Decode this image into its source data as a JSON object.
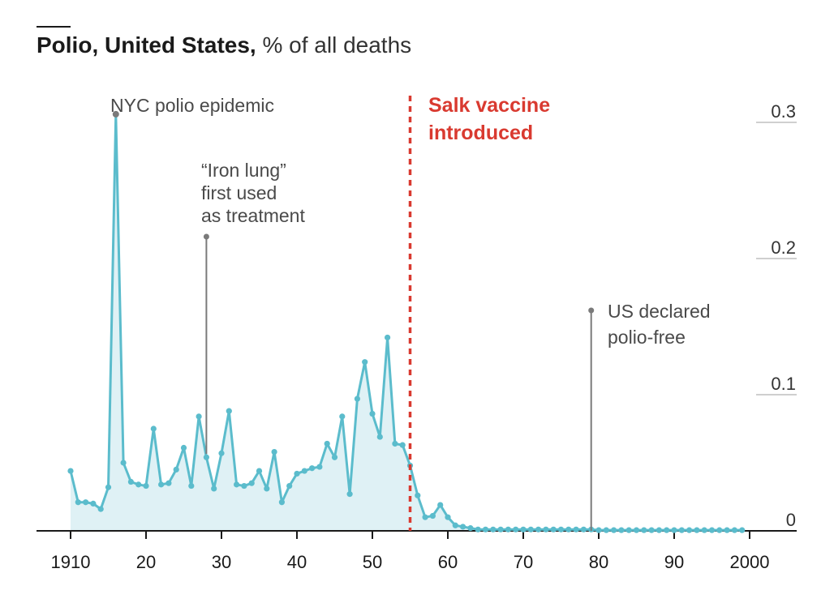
{
  "header": {
    "title": "Polio, United States,",
    "subtitle": "% of all deaths"
  },
  "annotations": {
    "nyc": {
      "lines": [
        "NYC polio epidemic"
      ],
      "x": 1916
    },
    "iron_lung": {
      "lines": [
        "“Iron lung”",
        "first used",
        "as treatment"
      ],
      "x": 1928
    },
    "salk": {
      "lines": [
        "Salk vaccine",
        "introduced"
      ],
      "x": 1955
    },
    "polio_free": {
      "lines": [
        "US declared",
        "polio-free"
      ],
      "x": 1979
    }
  },
  "colors": {
    "line": "#5bbccc",
    "area": "#dff1f5",
    "salk": "#d93a30",
    "annotation": "#7a7a7a",
    "text": "#333333",
    "grid": "#bfbfbf"
  },
  "chart_data": {
    "type": "area",
    "title": "Polio, United States, % of all deaths",
    "xlabel": "",
    "ylabel": "",
    "xlim": [
      1910,
      2000
    ],
    "ylim": [
      0,
      0.3
    ],
    "x_ticks": [
      {
        "value": 1910,
        "label": "1910"
      },
      {
        "value": 1920,
        "label": "20"
      },
      {
        "value": 1930,
        "label": "30"
      },
      {
        "value": 1940,
        "label": "40"
      },
      {
        "value": 1950,
        "label": "50"
      },
      {
        "value": 1960,
        "label": "60"
      },
      {
        "value": 1970,
        "label": "70"
      },
      {
        "value": 1980,
        "label": "80"
      },
      {
        "value": 1990,
        "label": "90"
      },
      {
        "value": 2000,
        "label": "2000"
      }
    ],
    "y_ticks": [
      {
        "value": 0,
        "label": "0"
      },
      {
        "value": 0.1,
        "label": "0.1"
      },
      {
        "value": 0.2,
        "label": "0.2"
      },
      {
        "value": 0.3,
        "label": "0.3"
      }
    ],
    "grid": "horizontal",
    "x": [
      1910,
      1911,
      1912,
      1913,
      1914,
      1915,
      1916,
      1917,
      1918,
      1919,
      1920,
      1921,
      1922,
      1923,
      1924,
      1925,
      1926,
      1927,
      1928,
      1929,
      1930,
      1931,
      1932,
      1933,
      1934,
      1935,
      1936,
      1937,
      1938,
      1939,
      1940,
      1941,
      1942,
      1943,
      1944,
      1945,
      1946,
      1947,
      1948,
      1949,
      1950,
      1951,
      1952,
      1953,
      1954,
      1955,
      1956,
      1957,
      1958,
      1959,
      1960,
      1961,
      1962,
      1963,
      1964,
      1965,
      1966,
      1967,
      1968,
      1969,
      1970,
      1971,
      1972,
      1973,
      1974,
      1975,
      1976,
      1977,
      1978,
      1979,
      1980,
      1981,
      1982,
      1983,
      1984,
      1985,
      1986,
      1987,
      1988,
      1989,
      1990,
      1991,
      1992,
      1993,
      1994,
      1995,
      1996,
      1997,
      1998,
      1999
    ],
    "values": [
      0.044,
      0.021,
      0.021,
      0.02,
      0.016,
      0.032,
      0.306,
      0.05,
      0.036,
      0.034,
      0.033,
      0.075,
      0.034,
      0.035,
      0.045,
      0.061,
      0.033,
      0.084,
      0.054,
      0.031,
      0.057,
      0.088,
      0.034,
      0.033,
      0.035,
      0.044,
      0.031,
      0.058,
      0.021,
      0.033,
      0.042,
      0.044,
      0.046,
      0.047,
      0.064,
      0.054,
      0.084,
      0.027,
      0.097,
      0.124,
      0.086,
      0.069,
      0.142,
      0.064,
      0.063,
      0.048,
      0.026,
      0.01,
      0.011,
      0.019,
      0.01,
      0.004,
      0.003,
      0.002,
      0.001,
      0.001,
      0.001,
      0.001,
      0.001,
      0.001,
      0.001,
      0.001,
      0.001,
      0.001,
      0.001,
      0.001,
      0.001,
      0.001,
      0.001,
      0.001,
      0.0005,
      0.0005,
      0.0005,
      0.0005,
      0.0005,
      0.0005,
      0.0005,
      0.0005,
      0.0005,
      0.0005,
      0.0005,
      0.0005,
      0.0005,
      0.0005,
      0.0005,
      0.0005,
      0.0005,
      0.0005,
      0.0005,
      0.0005
    ]
  }
}
